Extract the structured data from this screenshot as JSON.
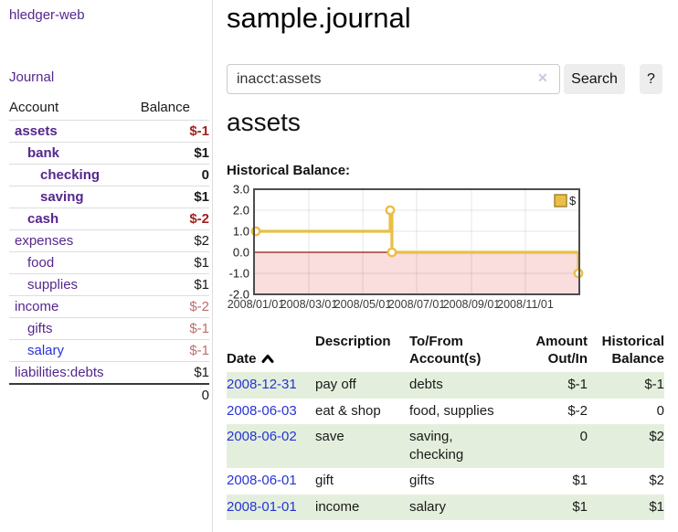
{
  "sidebar": {
    "brand": "hledger-web",
    "nav_journal": "Journal",
    "accounts_header": {
      "account": "Account",
      "balance": "Balance"
    },
    "accounts": [
      {
        "name": "assets",
        "depth": 1,
        "bold": true,
        "balance": "$-1",
        "tone": "neg"
      },
      {
        "name": "bank",
        "depth": 2,
        "bold": true,
        "balance": "$1",
        "tone": ""
      },
      {
        "name": "checking",
        "depth": 3,
        "bold": true,
        "balance": "0",
        "tone": ""
      },
      {
        "name": "saving",
        "depth": 3,
        "bold": true,
        "balance": "$1",
        "tone": ""
      },
      {
        "name": "cash",
        "depth": 2,
        "bold": true,
        "balance": "$-2",
        "tone": "neg"
      },
      {
        "name": "expenses",
        "depth": 1,
        "bold": false,
        "balance": "$2",
        "tone": ""
      },
      {
        "name": "food",
        "depth": 2,
        "bold": false,
        "balance": "$1",
        "tone": ""
      },
      {
        "name": "supplies",
        "depth": 2,
        "bold": false,
        "balance": "$1",
        "tone": ""
      },
      {
        "name": "income",
        "depth": 1,
        "bold": false,
        "balance": "$-2",
        "tone": "neg-soft"
      },
      {
        "name": "gifts",
        "depth": 2,
        "bold": false,
        "balance": "$-1",
        "tone": "neg-soft"
      },
      {
        "name": "salary",
        "depth": 2,
        "bold": false,
        "balance": "$-1",
        "tone": "neg-soft",
        "link_color": "blue-link"
      },
      {
        "name": "liabilities:debts",
        "depth": 1,
        "bold": false,
        "balance": "$1",
        "tone": ""
      }
    ],
    "total": "0"
  },
  "header": {
    "title": "sample.journal"
  },
  "search": {
    "query": "inacct:assets",
    "clear_icon": "✕",
    "button_label": "Search",
    "help_label": "?"
  },
  "account_page": {
    "heading": "assets",
    "chart_label": "Historical Balance:"
  },
  "chart_data": {
    "type": "line",
    "style": "step-after",
    "title": "Historical Balance:",
    "series": [
      {
        "name": "$",
        "points": [
          [
            "2008-01-01",
            1
          ],
          [
            "2008-06-01",
            2
          ],
          [
            "2008-06-03",
            0
          ],
          [
            "2008-12-31",
            -1
          ]
        ]
      }
    ],
    "x_start": "2008-01-01",
    "x_end": "2008-12-31",
    "ylim": [
      -2,
      3
    ],
    "ytick_values": [
      3,
      2,
      1,
      0,
      -1,
      -2
    ],
    "ytick_labels": [
      "3.0",
      "2.0",
      "1.0",
      "0.0",
      "-1.0",
      "-2.0"
    ],
    "xticks": [
      {
        "date": "2008-01-01",
        "label": "2008/01/01"
      },
      {
        "date": "2008-03-01",
        "label": "2008/03/01"
      },
      {
        "date": "2008-05-01",
        "label": "2008/05/01"
      },
      {
        "date": "2008-07-01",
        "label": "2008/07/01"
      },
      {
        "date": "2008-09-01",
        "label": "2008/09/01"
      },
      {
        "date": "2008-11-01",
        "label": "2008/11/01"
      }
    ],
    "legend": {
      "label": "$",
      "position": "top-right"
    },
    "grid": true,
    "colors": {
      "line": "#e9bf46",
      "marker_fill": "#ffffff",
      "legend_border": "#a8862f",
      "negative_region": "#fadddd",
      "zero_line": "#8f1511",
      "border": "#4d4d4d"
    }
  },
  "register": {
    "columns": [
      {
        "label": "Date",
        "sortable": true,
        "sort_direction": "ascending"
      },
      {
        "label": "Description"
      },
      {
        "label": "To/From\nAccount(s)"
      },
      {
        "label": "Amount\nOut/In"
      },
      {
        "label": "Historical\nBalance"
      }
    ],
    "rows": [
      {
        "date": "2008-12-31",
        "description": "pay off",
        "accounts": "debts",
        "amount": "$-1",
        "amount_tone": "neg",
        "balance": "$-1",
        "balance_tone": "neg"
      },
      {
        "date": "2008-06-03",
        "description": "eat & shop",
        "accounts": "food, supplies",
        "amount": "$-2",
        "amount_tone": "neg",
        "balance": "0",
        "balance_tone": ""
      },
      {
        "date": "2008-06-02",
        "description": "save",
        "accounts": "saving, checking",
        "amount": "0",
        "amount_tone": "",
        "balance": "$2",
        "balance_tone": ""
      },
      {
        "date": "2008-06-01",
        "description": "gift",
        "accounts": "gifts",
        "amount": "$1",
        "amount_tone": "",
        "balance": "$2",
        "balance_tone": ""
      },
      {
        "date": "2008-01-01",
        "description": "income",
        "accounts": "salary",
        "amount": "$1",
        "amount_tone": "",
        "balance": "$1",
        "balance_tone": ""
      }
    ]
  },
  "colors": {
    "accent_purple": "#54278e",
    "link_blue": "#2733d8",
    "negative_strong": "#a3211c",
    "negative_soft": "#bc6e6c",
    "row_green": "#e3efdc",
    "chart_gold": "#e9bf46",
    "chart_negative_pink": "#fadddd",
    "zero_line_red": "#8f1511"
  }
}
